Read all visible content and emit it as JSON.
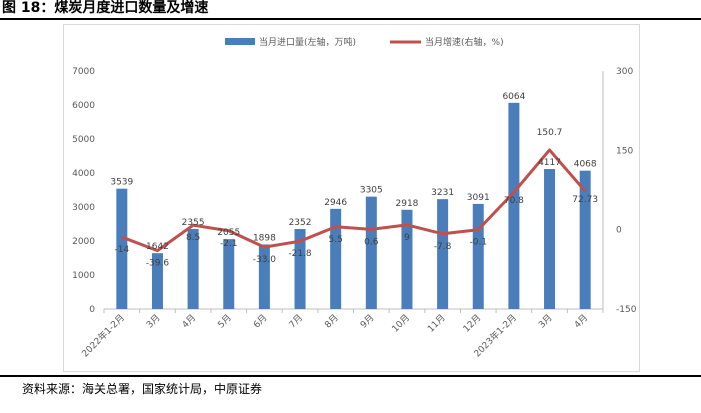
{
  "figure": {
    "title": "图 18：煤炭月度进口数量及增速",
    "source": "资料来源：海关总署，国家统计局，中原证券"
  },
  "chart_data": {
    "type": "bar",
    "categories": [
      "2022年1-2月",
      "3月",
      "4月",
      "5月",
      "6月",
      "7月",
      "8月",
      "9月",
      "10月",
      "11月",
      "12月",
      "2023年1-2月",
      "3月",
      "4月"
    ],
    "series": [
      {
        "name": "当月进口量(左轴，万吨)",
        "kind": "bar",
        "axis": "left",
        "color": "#4a7ebb",
        "values": [
          3539,
          1642,
          2355,
          2055,
          1898,
          2352,
          2946,
          3305,
          2918,
          3231,
          3091,
          6064,
          4117,
          4068
        ],
        "labels": [
          "3539",
          "1642",
          "2355",
          "2055",
          "1898",
          "2352",
          "2946",
          "3305",
          "2918",
          "3231",
          "3091",
          "6064",
          "4117",
          "4068"
        ]
      },
      {
        "name": "当月增速(右轴，%)",
        "kind": "line",
        "axis": "right",
        "color": "#c0504d",
        "values": [
          -14,
          -39.6,
          8.5,
          -2.1,
          -33.0,
          -21.8,
          5.5,
          0.6,
          9,
          -7.8,
          -0.1,
          70.8,
          150.7,
          72.73
        ],
        "labels": [
          "-14",
          "-39.6",
          "8.5",
          "-2.1",
          "-33.0",
          "-21.8",
          "5.5",
          "0.6",
          "9",
          "-7.8",
          "-0.1",
          "70.8",
          "150.7",
          "72.73"
        ]
      }
    ],
    "left_axis": {
      "min": 0,
      "max": 7000,
      "ticks": [
        "0",
        "1000",
        "2000",
        "3000",
        "4000",
        "5000",
        "6000",
        "7000"
      ]
    },
    "right_axis": {
      "min": -150,
      "max": 300,
      "ticks": [
        "-150",
        "0",
        "150",
        "300"
      ]
    },
    "legend_position": "top",
    "grid": false
  }
}
